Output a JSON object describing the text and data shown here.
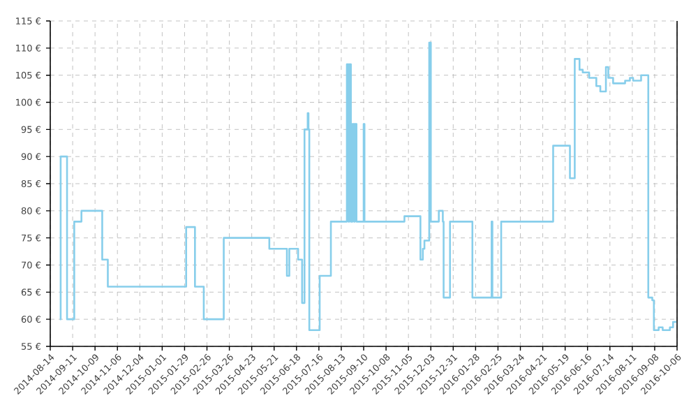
{
  "chart_data": {
    "type": "step",
    "color": "#87ceeb",
    "grid": true,
    "x": [
      "2014-08-26",
      "2014-08-27",
      "2014-09-04",
      "2014-09-13",
      "2014-09-22",
      "2014-10-18",
      "2014-10-25",
      "2015-01-31",
      "2015-02-11",
      "2015-02-22",
      "2015-03-19",
      "2015-05-15",
      "2015-06-06",
      "2015-06-09",
      "2015-06-20",
      "2015-06-25",
      "2015-06-28",
      "2015-07-02",
      "2015-07-03",
      "2015-07-04",
      "2015-07-17",
      "2015-07-31",
      "2015-08-20",
      "2015-08-22",
      "2015-08-23",
      "2015-08-25",
      "2015-08-27",
      "2015-08-29",
      "2015-08-30",
      "2015-09-01",
      "2015-09-10",
      "2015-09-11",
      "2015-10-31",
      "2015-11-20",
      "2015-11-23",
      "2015-11-25",
      "2015-12-01",
      "2015-12-03",
      "2015-12-13",
      "2015-12-18",
      "2015-12-19",
      "2015-12-27",
      "2016-01-24",
      "2016-02-17",
      "2016-02-18",
      "2016-02-29",
      "2016-05-04",
      "2016-05-25",
      "2016-05-31",
      "2016-06-06",
      "2016-06-10",
      "2016-06-18",
      "2016-06-27",
      "2016-07-02",
      "2016-07-09",
      "2016-07-12",
      "2016-07-18",
      "2016-08-02",
      "2016-08-08",
      "2016-08-12",
      "2016-08-22",
      "2016-08-31",
      "2016-09-05",
      "2016-09-07",
      "2016-09-13",
      "2016-09-18",
      "2016-09-27",
      "2016-10-01",
      "2016-10-05"
    ],
    "values": [
      60,
      90,
      60,
      78,
      80,
      71,
      66,
      77,
      66,
      60,
      75,
      73,
      68,
      73,
      71,
      63,
      95,
      98,
      95,
      58,
      68,
      78,
      107,
      78,
      107,
      78,
      96,
      78,
      96,
      78,
      96,
      78,
      79,
      71,
      73,
      74.5,
      111,
      78,
      80,
      78,
      64,
      78,
      64,
      78,
      64,
      78,
      92,
      86,
      108,
      106,
      105.5,
      104.5,
      103,
      102,
      106.5,
      104.5,
      103.5,
      104,
      104.5,
      104,
      105,
      64,
      63.5,
      58,
      58.5,
      58,
      58.5,
      59.5,
      59.5
    ],
    "xlim": [
      "2014-08-14",
      "2016-10-06"
    ],
    "xticks": [
      "2014-08-14",
      "2014-09-11",
      "2014-10-09",
      "2014-11-06",
      "2014-12-04",
      "2015-01-01",
      "2015-01-29",
      "2015-02-26",
      "2015-03-26",
      "2015-04-23",
      "2015-05-21",
      "2015-06-18",
      "2015-07-16",
      "2015-08-13",
      "2015-09-10",
      "2015-10-08",
      "2015-11-05",
      "2015-12-03",
      "2015-12-31",
      "2016-01-28",
      "2016-02-25",
      "2016-03-24",
      "2016-04-21",
      "2016-05-19",
      "2016-06-16",
      "2016-07-14",
      "2016-08-11",
      "2016-09-08",
      "2016-10-06"
    ],
    "ylim": [
      55,
      115
    ],
    "yticks": [
      {
        "value": 55,
        "label": "55 €"
      },
      {
        "value": 60,
        "label": "60 €"
      },
      {
        "value": 65,
        "label": "65 €"
      },
      {
        "value": 70,
        "label": "70 €"
      },
      {
        "value": 75,
        "label": "75 €"
      },
      {
        "value": 80,
        "label": "80 €"
      },
      {
        "value": 85,
        "label": "85 €"
      },
      {
        "value": 90,
        "label": "90 €"
      },
      {
        "value": 95,
        "label": "95 €"
      },
      {
        "value": 100,
        "label": "100 €"
      },
      {
        "value": 105,
        "label": "105 €"
      },
      {
        "value": 110,
        "label": "110 €"
      },
      {
        "value": 115,
        "label": "115 €"
      }
    ]
  }
}
